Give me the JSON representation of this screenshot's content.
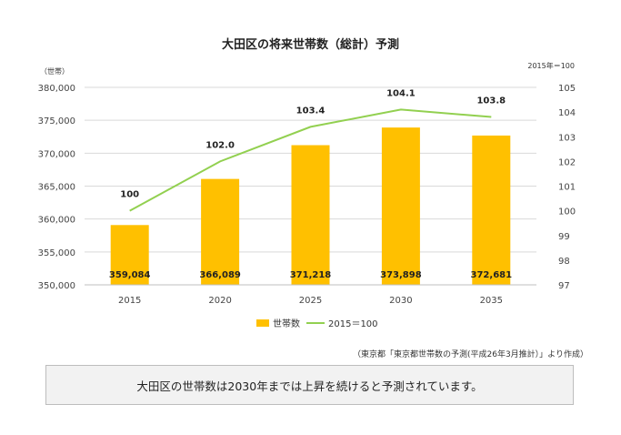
{
  "title": "大田区の将来世帯数（総計）予測",
  "left_unit": "（世帯）",
  "right_unit": "2015年＝100",
  "source": "（東京都「東京都世帯数の予測(平成26年3月推計）」より作成）",
  "summary": "大田区の世帯数は2030年までは上昇を続けると予測されています。",
  "colors": {
    "bar": "#FFC000",
    "line": "#92D050",
    "grid": "#d9d9d9"
  },
  "chart_data": {
    "type": "bar",
    "categories": [
      "2015",
      "2020",
      "2025",
      "2030",
      "2035"
    ],
    "series": [
      {
        "name": "世帯数",
        "type": "bar",
        "axis": "left",
        "values": [
          359084,
          366089,
          371218,
          373898,
          372681
        ],
        "labels": [
          "359,084",
          "366,089",
          "371,218",
          "373,898",
          "372,681"
        ]
      },
      {
        "name": "2015＝100",
        "type": "line",
        "axis": "right",
        "values": [
          100,
          102.0,
          103.4,
          104.1,
          103.8
        ],
        "labels": [
          "100",
          "102.0",
          "103.4",
          "104.1",
          "103.8"
        ]
      }
    ],
    "left_axis": {
      "min": 350000,
      "max": 380000,
      "step": 5000,
      "ticks": [
        "350,000",
        "355,000",
        "360,000",
        "365,000",
        "370,000",
        "375,000",
        "380,000"
      ]
    },
    "right_axis": {
      "min": 97,
      "max": 105,
      "step": 1,
      "ticks": [
        "97",
        "98",
        "99",
        "100",
        "101",
        "102",
        "103",
        "104",
        "105"
      ]
    },
    "grid": true,
    "legend": "bottom"
  }
}
